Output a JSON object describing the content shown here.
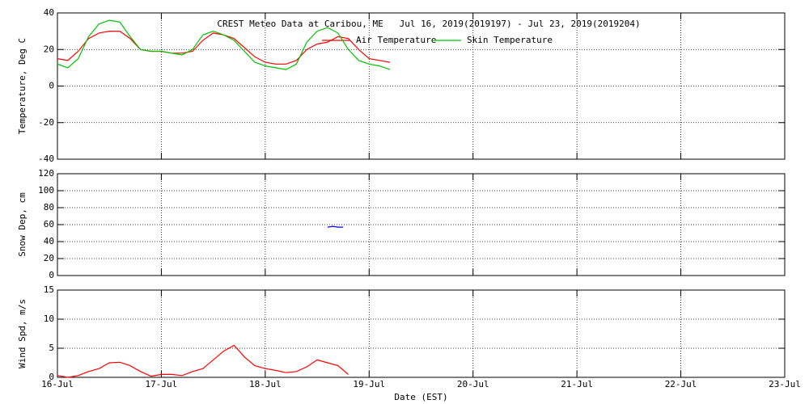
{
  "chart_data": [
    {
      "type": "line",
      "title": "CREST Meteo Data at Caribou, ME   Jul 16, 2019(2019197) - Jul 23, 2019(2019204)",
      "y_label": "Temperature, Deg C",
      "x": [
        16.0,
        16.1,
        16.2,
        16.3,
        16.4,
        16.5,
        16.6,
        16.7,
        16.8,
        16.9,
        17.0,
        17.1,
        17.2,
        17.3,
        17.4,
        17.5,
        17.6,
        17.7,
        17.8,
        17.9,
        18.0,
        18.1,
        18.2,
        18.3,
        18.4,
        18.5,
        18.6,
        18.7,
        18.8,
        18.9,
        19.0,
        19.1,
        19.2
      ],
      "series": [
        {
          "name": "Air Temperature",
          "color": "#ff0000",
          "values": [
            15,
            14,
            19,
            26,
            29,
            30,
            30,
            26,
            20,
            19,
            19,
            18,
            18,
            19,
            25,
            29,
            28,
            26,
            21,
            16,
            13,
            12,
            12,
            14,
            20,
            23,
            24,
            27,
            26,
            20,
            15,
            14,
            13
          ]
        },
        {
          "name": "Skin Temperature",
          "color": "#00c000",
          "values": [
            12,
            10,
            15,
            27,
            34,
            36,
            35,
            27,
            20,
            19,
            19,
            18,
            17,
            20,
            28,
            30,
            28,
            25,
            19,
            13,
            11,
            10,
            9,
            12,
            24,
            30,
            32,
            29,
            20,
            14,
            12,
            11,
            9
          ]
        }
      ],
      "xlim": [
        16,
        23
      ],
      "xticks": [
        16,
        17,
        18,
        19,
        20,
        21,
        22,
        23
      ],
      "ylim": [
        -40,
        40
      ],
      "yticks": [
        -40,
        -20,
        0,
        20,
        40
      ],
      "grid": true
    },
    {
      "type": "line",
      "y_label": "Snow Dep, cm",
      "x": [
        18.6,
        18.65,
        18.7,
        18.75
      ],
      "series": [
        {
          "name": "Snow Depth",
          "color": "#0000ff",
          "values": [
            57,
            58,
            57,
            57
          ]
        }
      ],
      "xlim": [
        16,
        23
      ],
      "xticks": [
        16,
        17,
        18,
        19,
        20,
        21,
        22,
        23
      ],
      "ylim": [
        0,
        120
      ],
      "yticks": [
        0,
        20,
        40,
        60,
        80,
        100,
        120
      ],
      "grid": true
    },
    {
      "type": "line",
      "y_label": "Wind Spd, m/s",
      "x_label": "Date (EST)",
      "x": [
        16.0,
        16.1,
        16.2,
        16.3,
        16.4,
        16.5,
        16.6,
        16.7,
        16.8,
        16.9,
        17.0,
        17.1,
        17.2,
        17.3,
        17.4,
        17.5,
        17.6,
        17.7,
        17.8,
        17.9,
        18.0,
        18.1,
        18.2,
        18.3,
        18.4,
        18.5,
        18.6,
        18.7,
        18.8
      ],
      "series": [
        {
          "name": "Wind Speed",
          "color": "#ff0000",
          "values": [
            0.3,
            0,
            0.3,
            1,
            1.5,
            2.5,
            2.6,
            2,
            1,
            0.2,
            0.5,
            0.5,
            0.3,
            1,
            1.5,
            3,
            4.5,
            5.5,
            3.5,
            2,
            1.5,
            1.2,
            0.8,
            1,
            1.8,
            3,
            2.5,
            2,
            0.5
          ]
        }
      ],
      "xlim": [
        16,
        23
      ],
      "xticks": [
        {
          "value": 16,
          "label": "16-Jul"
        },
        {
          "value": 17,
          "label": "17-Jul"
        },
        {
          "value": 18,
          "label": "18-Jul"
        },
        {
          "value": 19,
          "label": "19-Jul"
        },
        {
          "value": 20,
          "label": "20-Jul"
        },
        {
          "value": 21,
          "label": "21-Jul"
        },
        {
          "value": 22,
          "label": "22-Jul"
        },
        {
          "value": 23,
          "label": "23-Jul"
        }
      ],
      "ylim": [
        0,
        15
      ],
      "yticks": [
        0,
        5,
        10,
        15
      ],
      "grid": true
    }
  ]
}
